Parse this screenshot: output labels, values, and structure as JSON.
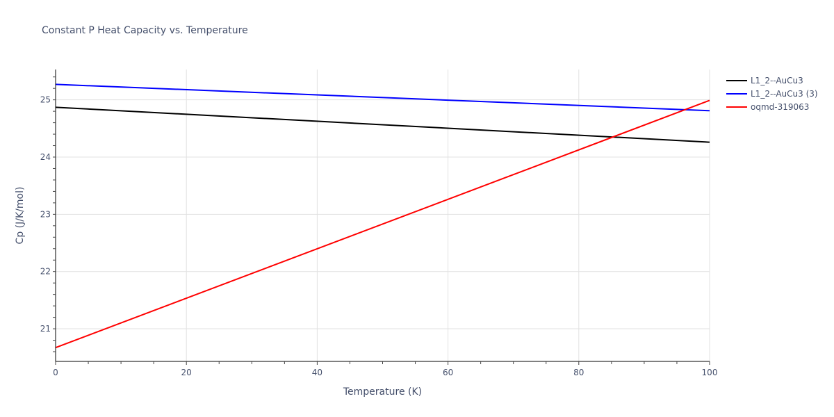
{
  "chart_data": {
    "type": "line",
    "title": "Constant P Heat Capacity vs. Temperature",
    "xlabel": "Temperature (K)",
    "ylabel": "Cp (J/K/mol)",
    "xlim": [
      0,
      100
    ],
    "ylim": [
      20.43,
      25.53
    ],
    "x_ticks": [
      0,
      20,
      40,
      60,
      80,
      100
    ],
    "y_ticks": [
      21,
      22,
      23,
      24,
      25
    ],
    "grid": true,
    "legend_position": "right",
    "series": [
      {
        "name": "L1_2--AuCu3",
        "color": "#000000",
        "x": [
          0,
          100
        ],
        "y": [
          24.87,
          24.26
        ]
      },
      {
        "name": "L1_2--AuCu3 (3)",
        "color": "#0000ff",
        "x": [
          0,
          100
        ],
        "y": [
          25.27,
          24.81
        ]
      },
      {
        "name": "oqmd-319063",
        "color": "#ff0000",
        "x": [
          0,
          100
        ],
        "y": [
          20.67,
          24.99
        ]
      }
    ]
  }
}
